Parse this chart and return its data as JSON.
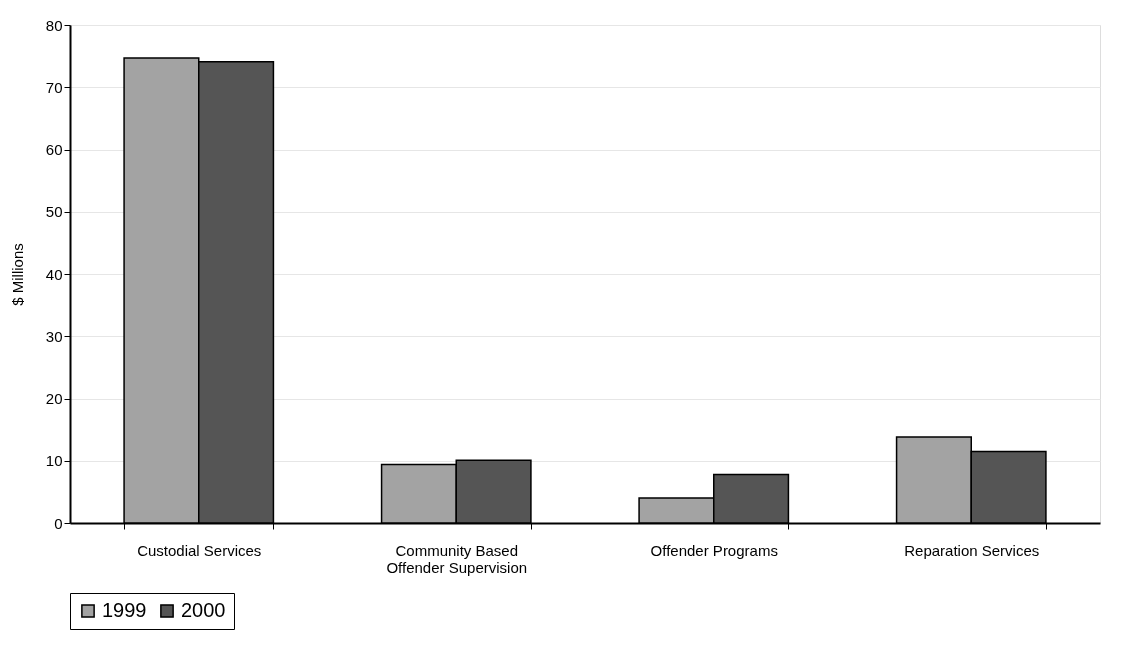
{
  "chart_data": {
    "type": "bar",
    "ylabel": "$ Millions",
    "categories": [
      "Custodial Services",
      "Community Based Offender Supervision",
      "Offender Programs",
      "Reparation Services"
    ],
    "series": [
      {
        "name": "1999",
        "color": "#a3a3a3",
        "values": [
          74.7,
          9.4,
          4.0,
          13.8
        ]
      },
      {
        "name": "2000",
        "color": "#555555",
        "values": [
          74.1,
          10.1,
          7.8,
          11.5
        ]
      }
    ],
    "ylim": [
      0,
      80
    ],
    "yticks": [
      0,
      10,
      20,
      30,
      40,
      50,
      60,
      70,
      80
    ],
    "grid": "y",
    "legend": "bottom"
  }
}
